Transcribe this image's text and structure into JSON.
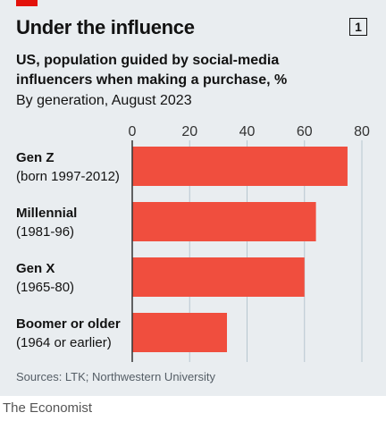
{
  "header": {
    "title": "Under the influence",
    "chart_number": "1",
    "subtitle": "US, population guided by social-media influencers when making a purchase, %",
    "subnote": "By generation, August 2023"
  },
  "footer": {
    "source": "Sources: LTK; Northwestern University",
    "credit": "The Economist"
  },
  "colors": {
    "bar": "#f04e3e",
    "grid": "#b7c6cf",
    "axis": "#333333",
    "accent": "#e3120b"
  },
  "chart_data": {
    "type": "bar",
    "orientation": "horizontal",
    "title": "Under the influence",
    "subtitle": "US, population guided by social-media influencers when making a purchase, %",
    "categories": [
      {
        "name": "Gen Z",
        "detail": "(born 1997-2012)"
      },
      {
        "name": "Millennial",
        "detail": "(1981-96)"
      },
      {
        "name": "Gen X",
        "detail": "(1965-80)"
      },
      {
        "name": "Boomer or older",
        "detail": "(1964 or earlier)"
      }
    ],
    "values": [
      75,
      64,
      60,
      33
    ],
    "xlim": [
      0,
      80
    ],
    "xticks": [
      0,
      20,
      40,
      60,
      80
    ],
    "grid": true,
    "xaxis_position": "top"
  }
}
